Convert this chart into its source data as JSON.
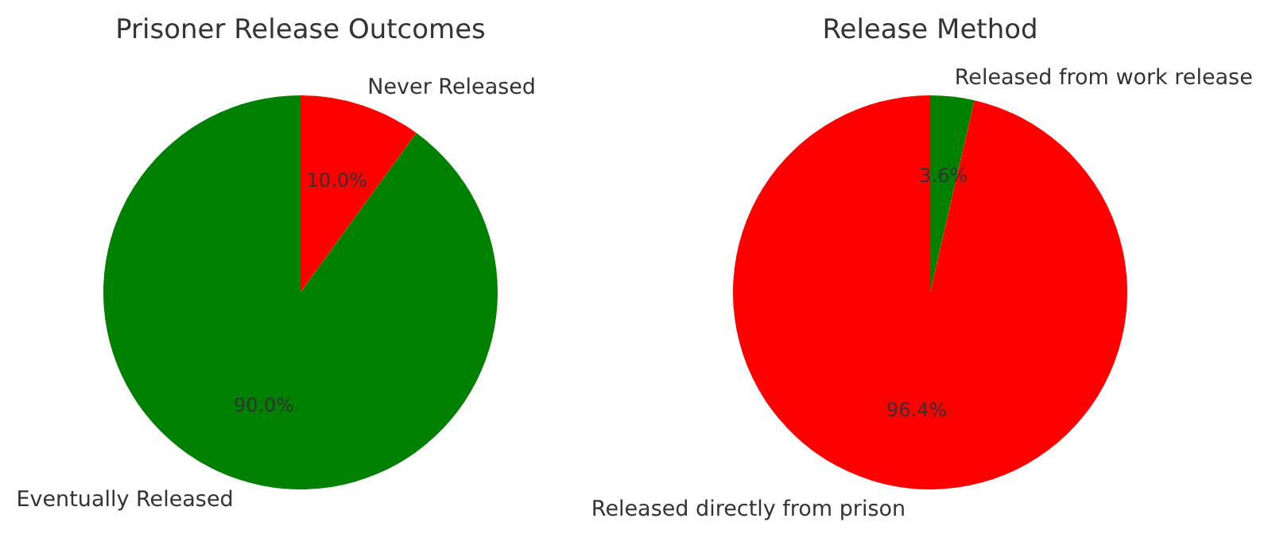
{
  "chart_data": [
    {
      "type": "pie",
      "title": "Prisoner Release Outcomes",
      "categories": [
        "Never Released",
        "Eventually Released"
      ],
      "values": [
        10,
        90
      ],
      "colors": [
        "#ff0000",
        "#008000"
      ],
      "value_labels": [
        "10.0%",
        "90.0%"
      ]
    },
    {
      "type": "pie",
      "title": "Release Method",
      "categories": [
        "Released from work release",
        "Released directly from prison"
      ],
      "values": [
        3.6,
        96.4
      ],
      "colors": [
        "#008000",
        "#ff0000"
      ],
      "value_labels": [
        "3.6%",
        "96.4%"
      ]
    }
  ]
}
